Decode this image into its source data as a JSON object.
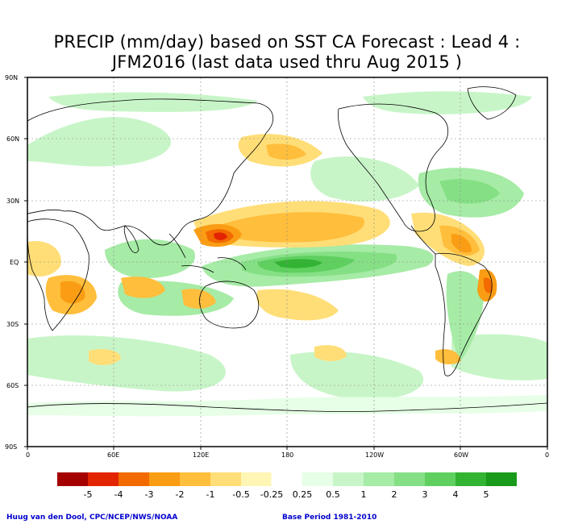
{
  "title_line1": "PRECIP (mm/day) based on SST CA Forecast : Lead 4 :",
  "title_line2": "JFM2016 (last data used thru Aug 2015 )",
  "lat_labels": [
    "90N",
    "60N",
    "30N",
    "EQ",
    "30S",
    "60S",
    "90S"
  ],
  "lon_labels": [
    "0",
    "60E",
    "120E",
    "180",
    "120W",
    "60W",
    "0"
  ],
  "legend": {
    "colors": [
      "#a50000",
      "#e32400",
      "#f26a00",
      "#fa9d14",
      "#ffbe3c",
      "#ffde78",
      "#fff5b4",
      "#ffffff",
      "#e6ffe6",
      "#c8f5c8",
      "#a6eba6",
      "#85e085",
      "#5fd05f",
      "#32b432",
      "#1a9a1a"
    ],
    "labels": [
      "-5",
      "-4",
      "-3",
      "-2",
      "-1",
      "-0.5",
      "-0.25",
      "0.25",
      "0.5",
      "1",
      "2",
      "3",
      "4",
      "5"
    ]
  },
  "credit_left": "Huug van den Dool, CPC/NCEP/NWS/NOAA",
  "credit_right": "Base Period 1981-2010"
}
